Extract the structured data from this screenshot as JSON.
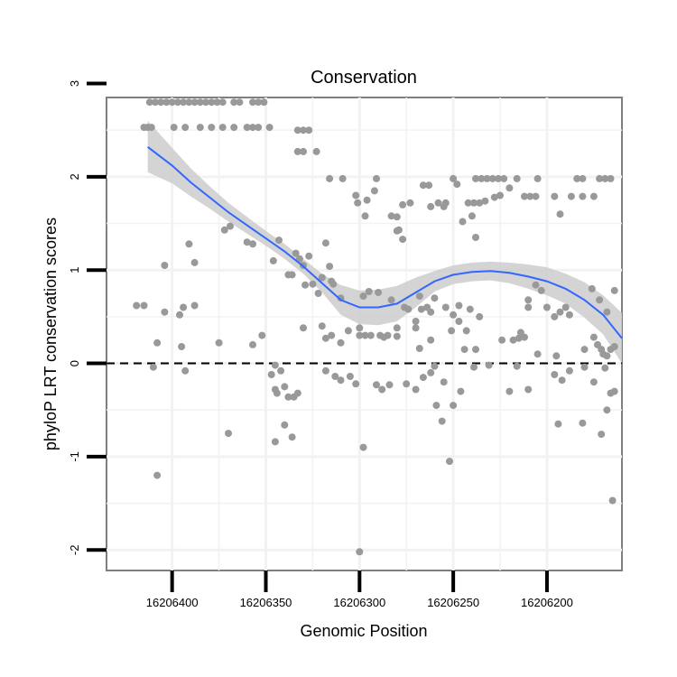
{
  "chart_data": {
    "type": "scatter",
    "title": "Conservation",
    "xlabel": "Genomic Position",
    "ylabel": "phyloP LRT conservation scores",
    "x_reversed": true,
    "xlim": [
      16206160,
      16206435
    ],
    "ylim": [
      -2.22,
      2.85
    ],
    "x_ticks": [
      16206400,
      16206350,
      16206300,
      16206250,
      16206200
    ],
    "y_ticks": [
      -2,
      -1,
      0,
      1,
      2,
      3
    ],
    "x_tick_labels": [
      "16206400",
      "16206350",
      "16206300",
      "16206250",
      "16206200"
    ],
    "y_tick_labels": [
      "-2",
      "-1",
      "0",
      "1",
      "2",
      "3"
    ],
    "reference_line": {
      "y": 0,
      "style": "dashed"
    },
    "grid": true,
    "colors": {
      "points": "#999999",
      "smooth": "#3366FF",
      "band": "#cccccc",
      "panel_border": "#7f7f7f",
      "grid": "#f2f2f2"
    },
    "points": [
      [
        16206412,
        2.8
      ],
      [
        16206409,
        2.8
      ],
      [
        16206406,
        2.8
      ],
      [
        16206403,
        2.8
      ],
      [
        16206400,
        2.8
      ],
      [
        16206397,
        2.8
      ],
      [
        16206394,
        2.8
      ],
      [
        16206391,
        2.8
      ],
      [
        16206388,
        2.8
      ],
      [
        16206385,
        2.8
      ],
      [
        16206382,
        2.8
      ],
      [
        16206379,
        2.8
      ],
      [
        16206376,
        2.8
      ],
      [
        16206373,
        2.8
      ],
      [
        16206367,
        2.8
      ],
      [
        16206364,
        2.8
      ],
      [
        16206357,
        2.8
      ],
      [
        16206354,
        2.8
      ],
      [
        16206351,
        2.8
      ],
      [
        16206415,
        2.53
      ],
      [
        16206413,
        2.53
      ],
      [
        16206411,
        2.53
      ],
      [
        16206399,
        2.53
      ],
      [
        16206393,
        2.53
      ],
      [
        16206385,
        2.53
      ],
      [
        16206379,
        2.53
      ],
      [
        16206373,
        2.53
      ],
      [
        16206367,
        2.53
      ],
      [
        16206360,
        2.53
      ],
      [
        16206357,
        2.53
      ],
      [
        16206354,
        2.53
      ],
      [
        16206348,
        2.53
      ],
      [
        16206333,
        2.5
      ],
      [
        16206330,
        2.5
      ],
      [
        16206327,
        2.5
      ],
      [
        16206333,
        2.27
      ],
      [
        16206330,
        2.27
      ],
      [
        16206323,
        2.27
      ],
      [
        16206316,
        1.98
      ],
      [
        16206309,
        1.98
      ],
      [
        16206291,
        1.98
      ],
      [
        16206250,
        1.98
      ],
      [
        16206238,
        1.98
      ],
      [
        16206235,
        1.98
      ],
      [
        16206232,
        1.98
      ],
      [
        16206229,
        1.98
      ],
      [
        16206226,
        1.98
      ],
      [
        16206223,
        1.98
      ],
      [
        16206216,
        1.98
      ],
      [
        16206205,
        1.98
      ],
      [
        16206184,
        1.98
      ],
      [
        16206181,
        1.98
      ],
      [
        16206172,
        1.98
      ],
      [
        16206169,
        1.98
      ],
      [
        16206166,
        1.98
      ],
      [
        16206248,
        1.92
      ],
      [
        16206220,
        1.88
      ],
      [
        16206266,
        1.91
      ],
      [
        16206263,
        1.91
      ],
      [
        16206292,
        1.85
      ],
      [
        16206302,
        1.8
      ],
      [
        16206296,
        1.75
      ],
      [
        16206301,
        1.72
      ],
      [
        16206258,
        1.72
      ],
      [
        16206254,
        1.72
      ],
      [
        16206242,
        1.72
      ],
      [
        16206239,
        1.72
      ],
      [
        16206236,
        1.72
      ],
      [
        16206233,
        1.74
      ],
      [
        16206228,
        1.78
      ],
      [
        16206212,
        1.79
      ],
      [
        16206209,
        1.79
      ],
      [
        16206206,
        1.79
      ],
      [
        16206196,
        1.79
      ],
      [
        16206187,
        1.79
      ],
      [
        16206181,
        1.79
      ],
      [
        16206225,
        1.8
      ],
      [
        16206175,
        1.79
      ],
      [
        16206277,
        1.7
      ],
      [
        16206273,
        1.72
      ],
      [
        16206262,
        1.68
      ],
      [
        16206255,
        1.68
      ],
      [
        16206245,
        1.52
      ],
      [
        16206280,
        1.57
      ],
      [
        16206283,
        1.58
      ],
      [
        16206297,
        1.58
      ],
      [
        16206193,
        1.6
      ],
      [
        16206240,
        1.58
      ],
      [
        16206277,
        1.33
      ],
      [
        16206279,
        1.43
      ],
      [
        16206280,
        1.42
      ],
      [
        16206238,
        1.35
      ],
      [
        16206391,
        1.28
      ],
      [
        16206372,
        1.43
      ],
      [
        16206369,
        1.47
      ],
      [
        16206360,
        1.3
      ],
      [
        16206357,
        1.28
      ],
      [
        16206343,
        1.32
      ],
      [
        16206346,
        1.1
      ],
      [
        16206334,
        1.18
      ],
      [
        16206332,
        1.12
      ],
      [
        16206330,
        1.05
      ],
      [
        16206327,
        1.15
      ],
      [
        16206318,
        1.29
      ],
      [
        16206316,
        1.04
      ],
      [
        16206338,
        0.95
      ],
      [
        16206336,
        0.95
      ],
      [
        16206329,
        0.84
      ],
      [
        16206320,
        0.92
      ],
      [
        16206315,
        0.88
      ],
      [
        16206314,
        0.85
      ],
      [
        16206310,
        0.7
      ],
      [
        16206298,
        0.72
      ],
      [
        16206295,
        0.77
      ],
      [
        16206290,
        0.76
      ],
      [
        16206283,
        0.68
      ],
      [
        16206276,
        0.6
      ],
      [
        16206274,
        0.58
      ],
      [
        16206267,
        0.58
      ],
      [
        16206264,
        0.6
      ],
      [
        16206262,
        0.55
      ],
      [
        16206260,
        0.7
      ],
      [
        16206247,
        0.62
      ],
      [
        16206236,
        0.5
      ],
      [
        16206325,
        0.85
      ],
      [
        16206322,
        0.75
      ],
      [
        16206268,
        0.72
      ],
      [
        16206241,
        0.58
      ],
      [
        16206250,
        0.52
      ],
      [
        16206254,
        0.6
      ],
      [
        16206210,
        0.68
      ],
      [
        16206206,
        0.84
      ],
      [
        16206203,
        0.78
      ],
      [
        16206200,
        0.6
      ],
      [
        16206196,
        0.5
      ],
      [
        16206193,
        0.55
      ],
      [
        16206190,
        0.6
      ],
      [
        16206188,
        0.52
      ],
      [
        16206176,
        0.8
      ],
      [
        16206172,
        0.68
      ],
      [
        16206168,
        0.55
      ],
      [
        16206160,
        0.68
      ],
      [
        16206164,
        0.78
      ],
      [
        16206396,
        0.52
      ],
      [
        16206388,
        0.62
      ],
      [
        16206404,
        1.05
      ],
      [
        16206388,
        1.08
      ],
      [
        16206394,
        0.6
      ],
      [
        16206404,
        0.55
      ],
      [
        16206415,
        0.62
      ],
      [
        16206419,
        0.62
      ],
      [
        16206315,
        0.3
      ],
      [
        16206320,
        0.4
      ],
      [
        16206318,
        0.27
      ],
      [
        16206310,
        0.22
      ],
      [
        16206306,
        0.35
      ],
      [
        16206300,
        0.3
      ],
      [
        16206297,
        0.3
      ],
      [
        16206294,
        0.3
      ],
      [
        16206289,
        0.3
      ],
      [
        16206287,
        0.28
      ],
      [
        16206285,
        0.3
      ],
      [
        16206280,
        0.29
      ],
      [
        16206270,
        0.38
      ],
      [
        16206268,
        0.16
      ],
      [
        16206262,
        0.25
      ],
      [
        16206251,
        0.35
      ],
      [
        16206244,
        0.15
      ],
      [
        16206238,
        0.15
      ],
      [
        16206224,
        0.25
      ],
      [
        16206218,
        0.25
      ],
      [
        16206215,
        0.27
      ],
      [
        16206212,
        0.28
      ],
      [
        16206205,
        0.1
      ],
      [
        16206195,
        0.08
      ],
      [
        16206180,
        0.15
      ],
      [
        16206175,
        0.28
      ],
      [
        16206330,
        0.38
      ],
      [
        16206300,
        0.38
      ],
      [
        16206280,
        0.38
      ],
      [
        16206270,
        0.45
      ],
      [
        16206247,
        0.45
      ],
      [
        16206243,
        0.35
      ],
      [
        16206352,
        0.3
      ],
      [
        16206357,
        0.2
      ],
      [
        16206375,
        0.22
      ],
      [
        16206408,
        0.22
      ],
      [
        16206395,
        0.18
      ],
      [
        16206410,
        -0.04
      ],
      [
        16206393,
        -0.08
      ],
      [
        16206318,
        -0.08
      ],
      [
        16206313,
        -0.14
      ],
      [
        16206310,
        -0.18
      ],
      [
        16206305,
        -0.14
      ],
      [
        16206302,
        -0.22
      ],
      [
        16206291,
        -0.23
      ],
      [
        16206288,
        -0.28
      ],
      [
        16206284,
        -0.23
      ],
      [
        16206275,
        -0.22
      ],
      [
        16206270,
        -0.28
      ],
      [
        16206266,
        -0.15
      ],
      [
        16206262,
        -0.1
      ],
      [
        16206260,
        -0.03
      ],
      [
        16206255,
        -0.2
      ],
      [
        16206250,
        -0.45
      ],
      [
        16206246,
        -0.3
      ],
      [
        16206239,
        -0.04
      ],
      [
        16206231,
        -0.02
      ],
      [
        16206220,
        -0.3
      ],
      [
        16206216,
        -0.03
      ],
      [
        16206210,
        -0.28
      ],
      [
        16206196,
        -0.12
      ],
      [
        16206192,
        -0.18
      ],
      [
        16206188,
        -0.08
      ],
      [
        16206180,
        -0.04
      ],
      [
        16206175,
        -0.2
      ],
      [
        16206169,
        -0.05
      ],
      [
        16206164,
        -0.3
      ],
      [
        16206340,
        -0.25
      ],
      [
        16206342,
        -0.08
      ],
      [
        16206344,
        -0.32
      ],
      [
        16206345,
        -0.28
      ],
      [
        16206338,
        -0.36
      ],
      [
        16206335,
        -0.36
      ],
      [
        16206333,
        -0.32
      ],
      [
        16206347,
        -0.12
      ],
      [
        16206345,
        -0.02
      ],
      [
        16206408,
        -1.2
      ],
      [
        16206370,
        -0.75
      ],
      [
        16206345,
        -0.84
      ],
      [
        16206336,
        -0.79
      ],
      [
        16206340,
        -0.66
      ],
      [
        16206256,
        -0.62
      ],
      [
        16206259,
        -0.45
      ],
      [
        16206252,
        -1.05
      ],
      [
        16206298,
        -0.9
      ],
      [
        16206194,
        -0.65
      ],
      [
        16206171,
        -0.76
      ],
      [
        16206168,
        -0.5
      ],
      [
        16206165,
        -1.47
      ],
      [
        16206181,
        -0.64
      ],
      [
        16206166,
        -0.32
      ],
      [
        16206160,
        -0.3
      ],
      [
        16206300,
        -2.02
      ],
      [
        16206210,
        0.6
      ],
      [
        16206214,
        0.33
      ],
      [
        16206173,
        0.2
      ],
      [
        16206171,
        0.15
      ],
      [
        16206170,
        0.1
      ],
      [
        16206168,
        0.08
      ],
      [
        16206166,
        0.15
      ],
      [
        16206164,
        0.18
      ],
      [
        16206161,
        0.2
      ],
      [
        16206158,
        0.25
      ]
    ],
    "smooth": {
      "x": [
        16206413,
        16206400,
        16206390,
        16206380,
        16206370,
        16206360,
        16206350,
        16206340,
        16206330,
        16206320,
        16206310,
        16206300,
        16206290,
        16206280,
        16206270,
        16206260,
        16206250,
        16206240,
        16206230,
        16206220,
        16206210,
        16206200,
        16206190,
        16206180,
        16206170,
        16206160
      ],
      "y": [
        2.32,
        2.12,
        1.94,
        1.78,
        1.62,
        1.48,
        1.34,
        1.2,
        1.04,
        0.86,
        0.68,
        0.6,
        0.6,
        0.64,
        0.76,
        0.88,
        0.95,
        0.98,
        0.99,
        0.97,
        0.93,
        0.88,
        0.8,
        0.68,
        0.52,
        0.27
      ],
      "lower": [
        2.05,
        1.93,
        1.79,
        1.66,
        1.52,
        1.39,
        1.26,
        1.12,
        0.96,
        0.76,
        0.52,
        0.42,
        0.41,
        0.45,
        0.6,
        0.77,
        0.85,
        0.88,
        0.89,
        0.86,
        0.8,
        0.73,
        0.64,
        0.49,
        0.31,
        0.0
      ],
      "upper": [
        2.6,
        2.31,
        2.09,
        1.9,
        1.72,
        1.57,
        1.42,
        1.28,
        1.12,
        0.96,
        0.84,
        0.78,
        0.79,
        0.83,
        0.92,
        0.99,
        1.05,
        1.08,
        1.09,
        1.08,
        1.06,
        1.03,
        0.96,
        0.87,
        0.73,
        0.54
      ]
    }
  }
}
